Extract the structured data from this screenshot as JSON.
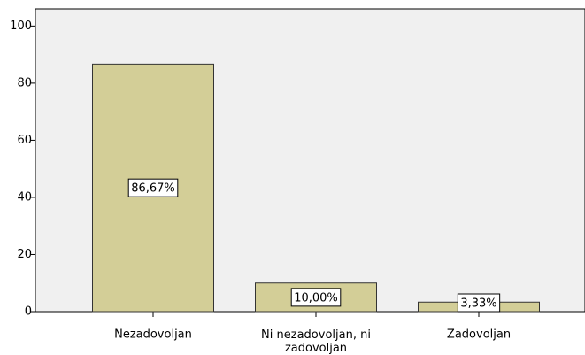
{
  "chart_data": {
    "type": "bar",
    "categories": [
      "Nezadovoljan",
      "Ni nezadovoljan, ni zadovoljan",
      "Zadovoljan"
    ],
    "values": [
      86.67,
      10,
      3.33
    ],
    "value_labels": [
      "86,67%",
      "10,00%",
      "3,33%"
    ],
    "color": "#d3ce97",
    "ylim": [
      0,
      106
    ],
    "yticks": [
      0,
      20,
      40,
      60,
      80,
      100
    ]
  }
}
